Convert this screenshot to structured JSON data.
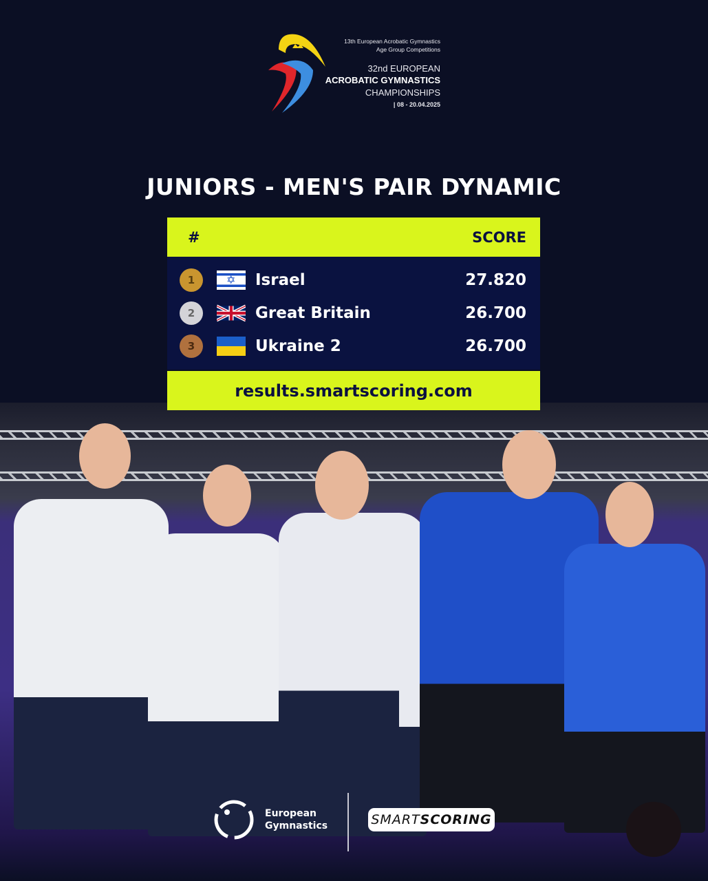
{
  "event": {
    "line1": "13th European Acrobatic Gymnastics",
    "line2": "Age Group Competitions",
    "line3": "32nd EUROPEAN",
    "line4": "ACROBATIC GYMNASTICS",
    "line5": "CHAMPIONSHIPS",
    "dates": "| 08 - 20.04.2025"
  },
  "title": "JUNIORS - MEN'S PAIR  DYNAMIC",
  "table": {
    "col_rank": "#",
    "col_score": "SCORE",
    "rows": [
      {
        "rank": "1",
        "country": "Israel",
        "score": "27.820",
        "medal": "gold",
        "medal_color": "#c9952f"
      },
      {
        "rank": "2",
        "country": "Great Britain",
        "score": "26.700",
        "medal": "silver",
        "medal_color": "#d4d4d8"
      },
      {
        "rank": "3",
        "country": "Ukraine 2",
        "score": "26.700",
        "medal": "bronze",
        "medal_color": "#b0713e"
      }
    ],
    "url": "results.smartscoring.com"
  },
  "footer": {
    "eg_line1": "European",
    "eg_line2": "Gymnastics",
    "smartscoring_a": "SMART",
    "smartscoring_b": "SCORING"
  },
  "colors": {
    "accent": "#d9f51c",
    "navy": "#0a1240",
    "background": "#0b0f24"
  }
}
